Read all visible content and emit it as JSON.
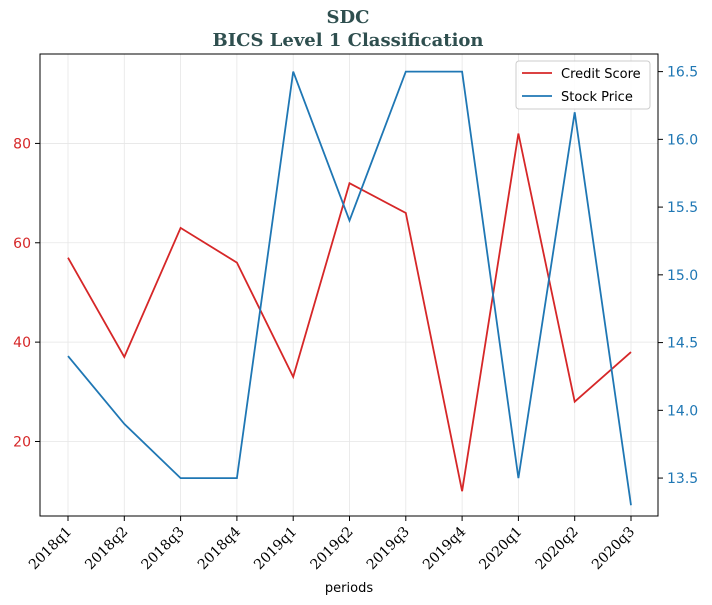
{
  "chart_data": {
    "type": "line",
    "title": "SDC",
    "subtitle": "BICS Level 1 Classification",
    "xlabel": "periods",
    "categories": [
      "2018q1",
      "2018q2",
      "2018q3",
      "2018q4",
      "2019q1",
      "2019q2",
      "2019q3",
      "2019q4",
      "2020q1",
      "2020q2",
      "2020q3"
    ],
    "series": [
      {
        "name": "Credit Score",
        "axis": "left",
        "color": "#d62728",
        "values": [
          57,
          37,
          63,
          56,
          33,
          72,
          66,
          10,
          82,
          28,
          38
        ]
      },
      {
        "name": "Stock Price",
        "axis": "right",
        "color": "#1f77b4",
        "values": [
          14.4,
          13.9,
          13.5,
          13.5,
          16.5,
          15.4,
          16.5,
          16.5,
          13.5,
          16.2,
          13.3
        ]
      }
    ],
    "y_left": {
      "ticks": [
        20,
        40,
        60,
        80
      ],
      "color": "#d62728",
      "ylim": [
        5,
        98
      ]
    },
    "y_right": {
      "ticks": [
        13.5,
        14.0,
        14.5,
        15.0,
        15.5,
        16.0,
        16.5
      ],
      "tick_labels": [
        "13.5",
        "14.0",
        "14.5",
        "15.0",
        "15.5",
        "16.0",
        "16.5"
      ],
      "color": "#1f77b4",
      "ylim": [
        13.22,
        16.63
      ]
    },
    "grid": true,
    "legend": "top-right"
  }
}
